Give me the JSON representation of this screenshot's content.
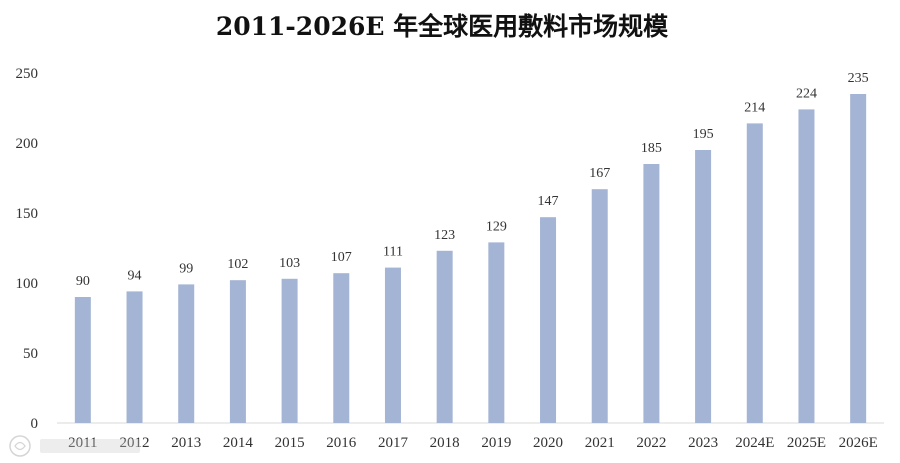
{
  "chart_data": {
    "type": "bar",
    "title": "2011-2026E 年全球医用敷料市场规模",
    "xlabel": "",
    "ylabel": "",
    "categories": [
      "2011",
      "2012",
      "2013",
      "2014",
      "2015",
      "2016",
      "2017",
      "2018",
      "2019",
      "2020",
      "2021",
      "2022",
      "2023",
      "2024E",
      "2025E",
      "2026E"
    ],
    "values": [
      90,
      94,
      99,
      102,
      103,
      107,
      111,
      123,
      129,
      147,
      167,
      185,
      195,
      214,
      224,
      235
    ],
    "ylim": [
      0,
      250
    ],
    "yticks": [
      0,
      50,
      100,
      150,
      200,
      250
    ],
    "grid": false,
    "legend": "none",
    "bar_color": "#a4b4d4",
    "axis_color": "#d9d9d9"
  }
}
